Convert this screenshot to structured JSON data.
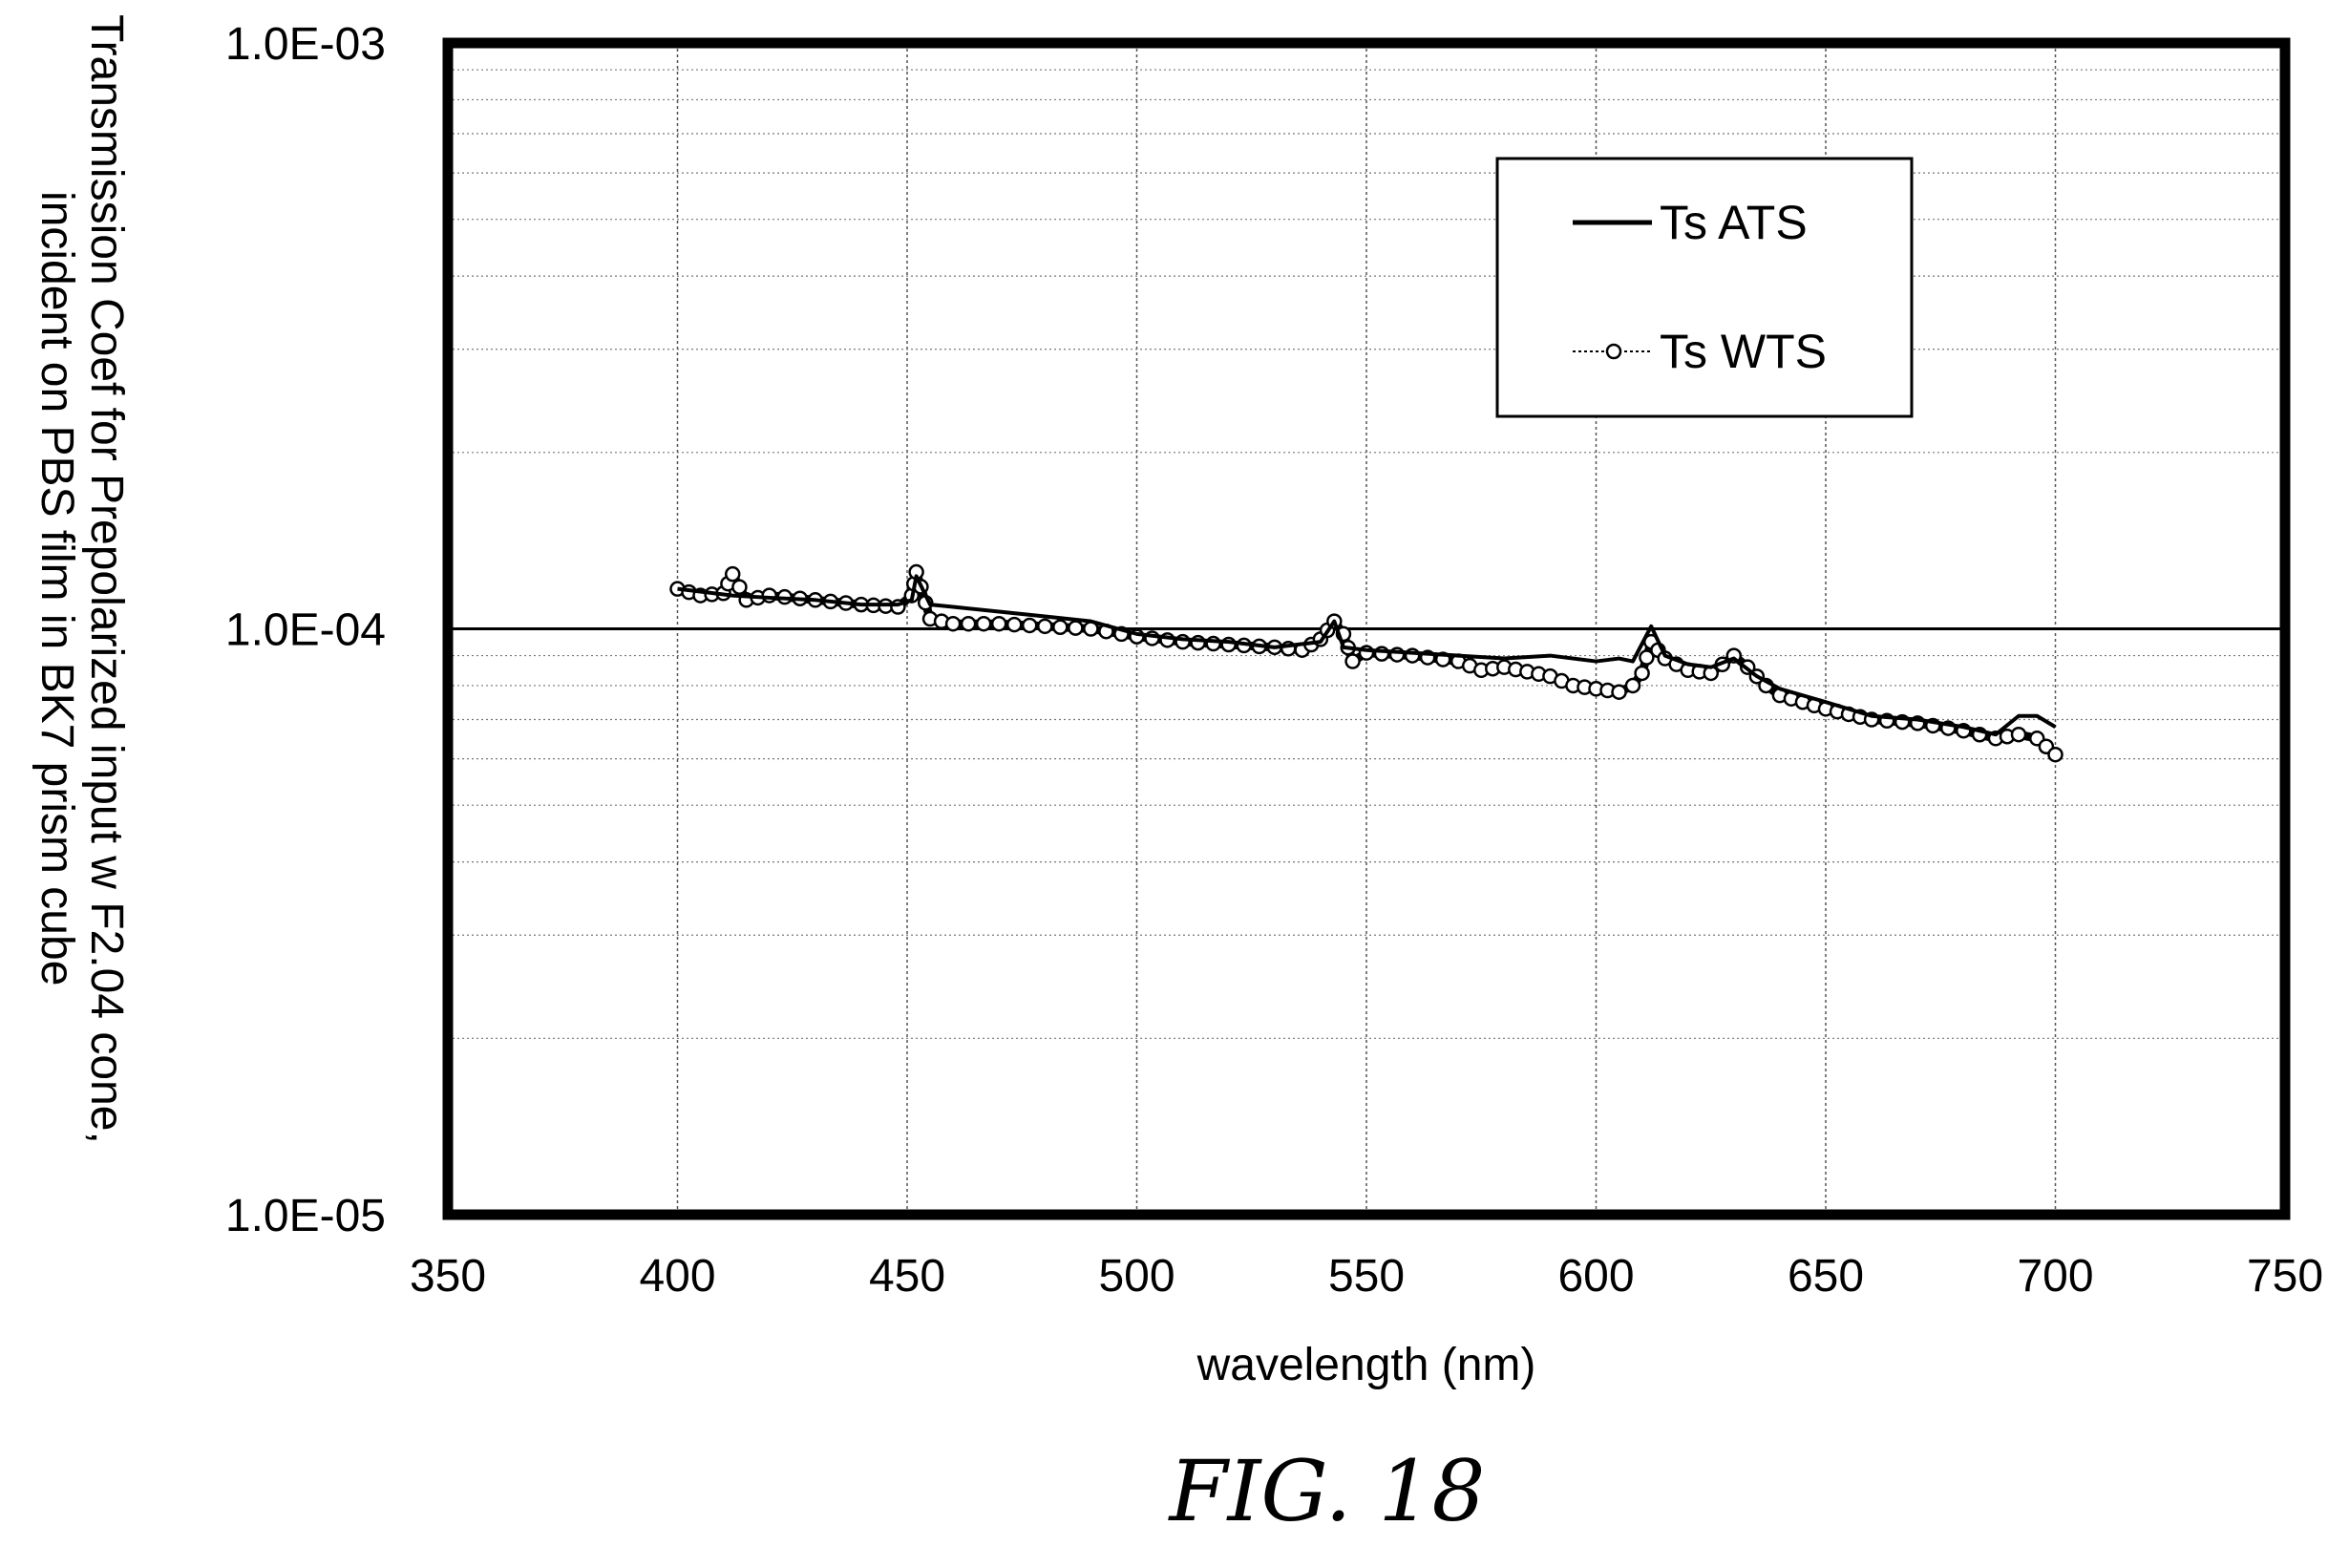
{
  "chart_data": {
    "type": "line",
    "xlabel": "wavelength (nm)",
    "ylabel_lines": [
      "Transmission Coef for Prepolarized input w F2.04 cone,",
      "incident on PBS film in BK7 prism cube"
    ],
    "xlim": [
      350,
      750
    ],
    "ylim": [
      1e-05,
      0.001
    ],
    "yscale": "log",
    "x_ticks": [
      350,
      400,
      450,
      500,
      550,
      600,
      650,
      700,
      750
    ],
    "x_tick_labels": [
      "350",
      "400",
      "450",
      "500",
      "550",
      "600",
      "650",
      "700",
      "750"
    ],
    "y_ticks": [
      1e-05,
      0.0001,
      0.001
    ],
    "y_tick_labels": [
      "1.0E-05",
      "1.0E-04",
      "1.0E-03"
    ],
    "grid": true,
    "legend_position": "top-right",
    "series": [
      {
        "name": "Ts ATS",
        "style": "line",
        "color": "#000000",
        "x": [
          400,
          412,
          420,
          430,
          440,
          448,
          451,
          452,
          455,
          460,
          470,
          480,
          490,
          500,
          510,
          520,
          530,
          540,
          543,
          545,
          550,
          560,
          570,
          580,
          590,
          600,
          605,
          608,
          612,
          615,
          620,
          625,
          630,
          635,
          640,
          650,
          660,
          670,
          680,
          687,
          692,
          696,
          700
        ],
        "y": [
          0.000117,
          0.000114,
          0.000113,
          0.000112,
          0.00011,
          0.00011,
          0.000112,
          0.000123,
          0.00011,
          0.000109,
          0.000107,
          0.000105,
          0.000103,
          9.8e-05,
          9.6e-05,
          9.5e-05,
          9.3e-05,
          9.5e-05,
          0.000103,
          9.3e-05,
          9.2e-05,
          9.1e-05,
          9e-05,
          8.9e-05,
          9e-05,
          8.8e-05,
          8.9e-05,
          8.8e-05,
          0.000101,
          9e-05,
          8.7e-05,
          8.6e-05,
          8.9e-05,
          8.3e-05,
          7.9e-05,
          7.5e-05,
          7.1e-05,
          7e-05,
          6.8e-05,
          6.6e-05,
          7.1e-05,
          7.1e-05,
          6.8e-05
        ]
      },
      {
        "name": "Ts WTS",
        "style": "line-circle-markers",
        "color": "#000000",
        "x": [
          400,
          405,
          410,
          412,
          415,
          420,
          430,
          440,
          448,
          451,
          452,
          453,
          455,
          460,
          470,
          480,
          490,
          500,
          510,
          520,
          530,
          536,
          540,
          543,
          545,
          547,
          550,
          560,
          570,
          575,
          580,
          590,
          595,
          600,
          605,
          608,
          610,
          612,
          615,
          620,
          625,
          630,
          633,
          637,
          640,
          650,
          660,
          670,
          680,
          687,
          692,
          696,
          700
        ],
        "y": [
          0.000117,
          0.000114,
          0.000115,
          0.000124,
          0.000112,
          0.000114,
          0.000112,
          0.00011,
          0.000109,
          0.000114,
          0.000125,
          0.000118,
          0.000104,
          0.000102,
          0.000102,
          0.000101,
          0.0001,
          9.7e-05,
          9.5e-05,
          9.4e-05,
          9.3e-05,
          9.2e-05,
          9.6e-05,
          0.000103,
          9.8e-05,
          8.8e-05,
          9.1e-05,
          9e-05,
          8.8e-05,
          8.5e-05,
          8.6e-05,
          8.3e-05,
          8e-05,
          7.9e-05,
          7.8e-05,
          8e-05,
          8.4e-05,
          9.5e-05,
          8.9e-05,
          8.5e-05,
          8.4e-05,
          9e-05,
          8.6e-05,
          8e-05,
          7.7e-05,
          7.3e-05,
          7e-05,
          6.9e-05,
          6.7e-05,
          6.5e-05,
          6.6e-05,
          6.5e-05,
          6.1e-05
        ]
      }
    ]
  },
  "figure_caption": "FIG. 18"
}
